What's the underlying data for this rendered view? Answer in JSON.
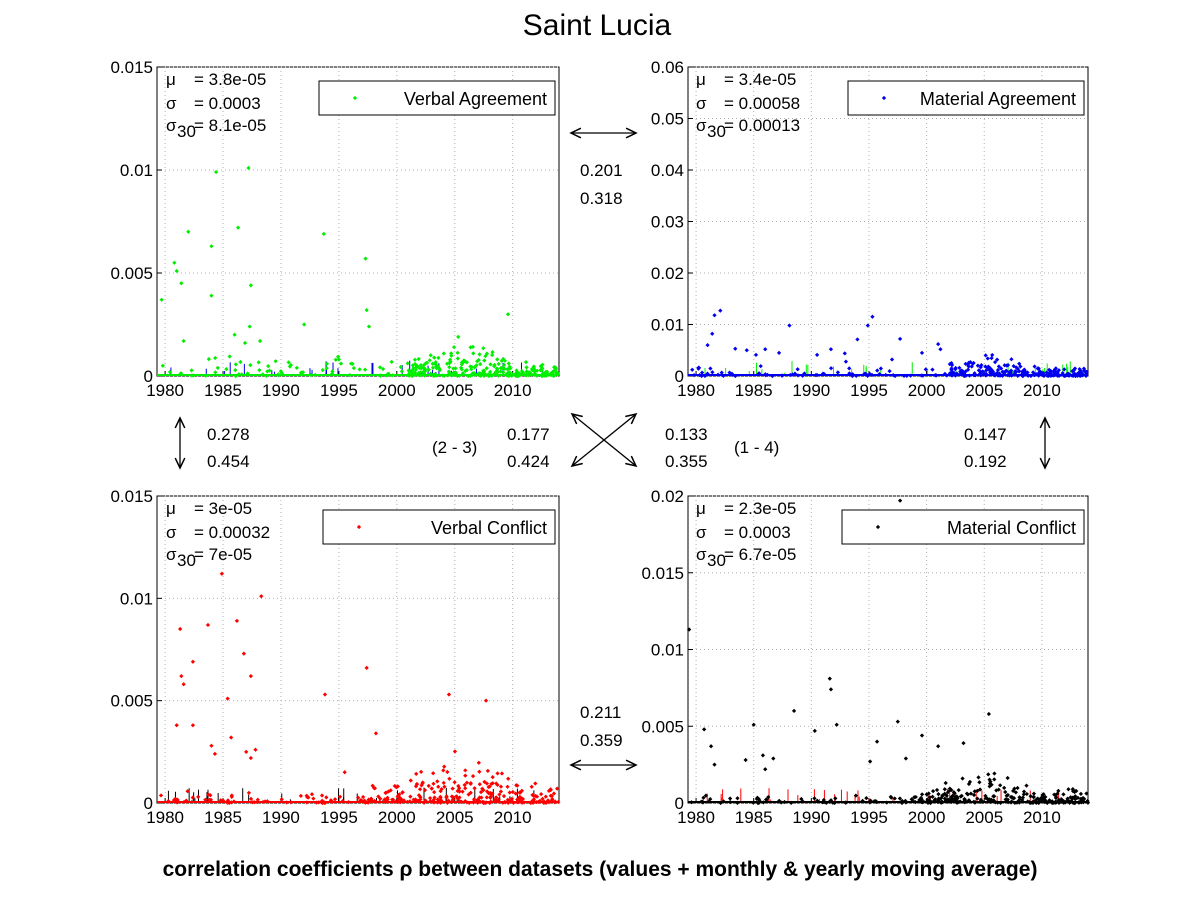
{
  "title": "Saint Lucia",
  "xlabel": "correlation coefficients ρ between datasets (values + monthly & yearly moving average)",
  "colors": {
    "verbal_agreement": "#00ee00",
    "material_agreement": "#0000ee",
    "verbal_conflict": "#ff0000",
    "material_conflict": "#000000",
    "grid": "#b0b0b0"
  },
  "correlations": {
    "top": {
      "v1": "0.201",
      "v2": "0.318"
    },
    "bottom": {
      "v1": "0.211",
      "v2": "0.359"
    },
    "left": {
      "v1": "0.278",
      "v2": "0.454"
    },
    "right": {
      "v1": "0.147",
      "v2": "0.192"
    },
    "diag_23": {
      "label": "(2 - 3)",
      "v1": "0.177",
      "v2": "0.424"
    },
    "diag_14": {
      "label": "(1 - 4)",
      "v1": "0.133",
      "v2": "0.355"
    }
  },
  "chart_data": [
    {
      "type": "scatter",
      "legend": "Verbal Agreement",
      "color": "#00ee00",
      "stats": {
        "mu_label": "μ",
        "mu": "= 3.8e-05",
        "sigma_label": "σ",
        "sigma": "= 0.0003",
        "sigma30_label": "σ",
        "sigma30_sub": "30",
        "sigma30": "= 8.1e-05"
      },
      "xlim": [
        1979.3,
        2014
      ],
      "ylim": [
        0,
        0.015
      ],
      "xticks": [
        1980,
        1985,
        1990,
        1995,
        2000,
        2005,
        2010
      ],
      "yticks": [
        0,
        0.005,
        0.01,
        0.015
      ],
      "ytick_labels": [
        "0",
        "0.005",
        "0.01",
        "0.015"
      ],
      "grid": true,
      "legend_position": "top-right",
      "peaks": [
        [
          1979.7,
          0.0037
        ],
        [
          1980.8,
          0.0055
        ],
        [
          1981.0,
          0.0051
        ],
        [
          1981.4,
          0.0045
        ],
        [
          1982.0,
          0.007
        ],
        [
          1981.6,
          0.0017
        ],
        [
          1984.0,
          0.0063
        ],
        [
          1984.4,
          0.0099
        ],
        [
          1984.0,
          0.0039
        ],
        [
          1986.3,
          0.0072
        ],
        [
          1986.0,
          0.002
        ],
        [
          1986.9,
          0.0016
        ],
        [
          1987.2,
          0.0101
        ],
        [
          1987.4,
          0.0044
        ],
        [
          1987.3,
          0.0024
        ],
        [
          1988.2,
          0.0017
        ],
        [
          1993.7,
          0.0069
        ],
        [
          1997.3,
          0.0057
        ],
        [
          1997.4,
          0.0032
        ],
        [
          1997.6,
          0.0024
        ],
        [
          2005.3,
          0.0019
        ],
        [
          2009.6,
          0.003
        ],
        [
          1992.0,
          0.0025
        ],
        [
          1995.0,
          0.0008
        ]
      ],
      "dense": {
        "x_start": 2001,
        "x_end": 2014,
        "y_center": 0.0006,
        "peak_x": 2005.5
      },
      "sparse_low": {
        "x_start": 1979.5,
        "x_end": 2001,
        "y_max": 0.0012
      },
      "other_series_color": "#0000ee"
    },
    {
      "type": "scatter",
      "legend": "Material Agreement",
      "color": "#0000ee",
      "stats": {
        "mu_label": "μ",
        "mu": "= 3.4e-05",
        "sigma_label": "σ",
        "sigma": "= 0.00058",
        "sigma30_label": "σ",
        "sigma30_sub": "30",
        "sigma30": "= 0.00013"
      },
      "xlim": [
        1979.3,
        2014
      ],
      "ylim": [
        0,
        0.06
      ],
      "xticks": [
        1980,
        1985,
        1990,
        1995,
        2000,
        2005,
        2010
      ],
      "yticks": [
        0,
        0.01,
        0.02,
        0.03,
        0.04,
        0.05,
        0.06
      ],
      "ytick_labels": [
        "0",
        "0.01",
        "0.02",
        "0.03",
        "0.04",
        "0.05",
        "0.06"
      ],
      "grid": true,
      "legend_position": "top-right",
      "peaks": [
        [
          1981.0,
          0.006
        ],
        [
          1981.4,
          0.0082
        ],
        [
          1981.6,
          0.0118
        ],
        [
          1982.1,
          0.0127
        ],
        [
          1983.4,
          0.0053
        ],
        [
          1984.4,
          0.005
        ],
        [
          1985.2,
          0.0041
        ],
        [
          1986.0,
          0.0052
        ],
        [
          1987.2,
          0.0045
        ],
        [
          1988.1,
          0.0098
        ],
        [
          1990.5,
          0.0041
        ],
        [
          1991.7,
          0.0052
        ],
        [
          1992.9,
          0.0044
        ],
        [
          1994.0,
          0.0071
        ],
        [
          1994.9,
          0.0098
        ],
        [
          1995.3,
          0.0115
        ],
        [
          1997.0,
          0.0032
        ],
        [
          1997.7,
          0.0072
        ],
        [
          1999.6,
          0.0045
        ],
        [
          2001.0,
          0.0062
        ],
        [
          2001.2,
          0.0052
        ],
        [
          1993.0,
          0.0028
        ]
      ],
      "dense": {
        "x_start": 2002,
        "x_end": 2014,
        "y_center": 0.0015,
        "peak_x": 2005.2
      },
      "sparse_low": {
        "x_start": 1979.5,
        "x_end": 2002,
        "y_max": 0.002
      },
      "other_series_color": "#00ee00"
    },
    {
      "type": "scatter",
      "legend": "Verbal Conflict",
      "color": "#ff0000",
      "stats": {
        "mu_label": "μ",
        "mu": "= 3e-05",
        "sigma_label": "σ",
        "sigma": "= 0.00032",
        "sigma30_label": "σ",
        "sigma30_sub": "30",
        "sigma30": "= 7e-05"
      },
      "xlim": [
        1979.3,
        2014
      ],
      "ylim": [
        0,
        0.015
      ],
      "xticks": [
        1980,
        1985,
        1990,
        1995,
        2000,
        2005,
        2010
      ],
      "yticks": [
        0,
        0.005,
        0.01,
        0.015
      ],
      "ytick_labels": [
        "0",
        "0.005",
        "0.01",
        "0.015"
      ],
      "grid": true,
      "legend_position": "top-right",
      "peaks": [
        [
          1981.3,
          0.0085
        ],
        [
          1982.4,
          0.0069
        ],
        [
          1981.4,
          0.0062
        ],
        [
          1981.6,
          0.0058
        ],
        [
          1981.0,
          0.0038
        ],
        [
          1982.4,
          0.0038
        ],
        [
          1983.7,
          0.0087
        ],
        [
          1984.9,
          0.0112
        ],
        [
          1985.4,
          0.0051
        ],
        [
          1986.2,
          0.0089
        ],
        [
          1986.8,
          0.0073
        ],
        [
          1987.4,
          0.0062
        ],
        [
          1988.3,
          0.0101
        ],
        [
          1984.0,
          0.0028
        ],
        [
          1984.3,
          0.0024
        ],
        [
          1985.7,
          0.0032
        ],
        [
          1987.0,
          0.0025
        ],
        [
          1987.4,
          0.0022
        ],
        [
          1987.8,
          0.0026
        ],
        [
          1993.8,
          0.0053
        ],
        [
          1997.4,
          0.0066
        ],
        [
          1998.2,
          0.0034
        ],
        [
          2004.5,
          0.0053
        ],
        [
          2007.7,
          0.005
        ],
        [
          1995.5,
          0.0015
        ]
      ],
      "dense": {
        "x_start": 1997.5,
        "x_end": 2014,
        "y_center": 0.0009,
        "peak_x": 2005.3
      },
      "sparse_low": {
        "x_start": 1979.5,
        "x_end": 1997.5,
        "y_max": 0.0006
      },
      "other_series_color": "#000000"
    },
    {
      "type": "scatter",
      "legend": "Material Conflict",
      "color": "#000000",
      "stats": {
        "mu_label": "μ",
        "mu": "= 2.3e-05",
        "sigma_label": "σ",
        "sigma": "= 0.0003",
        "sigma30_label": "σ",
        "sigma30_sub": "30",
        "sigma30": "= 6.7e-05"
      },
      "xlim": [
        1979.3,
        2014
      ],
      "ylim": [
        0,
        0.02
      ],
      "xticks": [
        1980,
        1985,
        1990,
        1995,
        2000,
        2005,
        2010
      ],
      "yticks": [
        0,
        0.005,
        0.01,
        0.015,
        0.02
      ],
      "ytick_labels": [
        "0",
        "0.005",
        "0.01",
        "0.015",
        "0.02"
      ],
      "grid": true,
      "legend_position": "top-right",
      "peaks": [
        [
          1979.4,
          0.0113
        ],
        [
          1980.7,
          0.0048
        ],
        [
          1981.3,
          0.0037
        ],
        [
          1981.6,
          0.0025
        ],
        [
          1984.3,
          0.0028
        ],
        [
          1985.0,
          0.0051
        ],
        [
          1985.8,
          0.0031
        ],
        [
          1986.0,
          0.0022
        ],
        [
          1986.7,
          0.0029
        ],
        [
          1988.5,
          0.006
        ],
        [
          1990.3,
          0.0047
        ],
        [
          1991.6,
          0.0081
        ],
        [
          1991.7,
          0.0074
        ],
        [
          1992.2,
          0.0051
        ],
        [
          1995.1,
          0.0027
        ],
        [
          1995.7,
          0.004
        ],
        [
          1997.5,
          0.0053
        ],
        [
          1998.2,
          0.0029
        ],
        [
          1999.6,
          0.0044
        ],
        [
          2001.0,
          0.0037
        ],
        [
          2003.2,
          0.0039
        ],
        [
          2005.4,
          0.0058
        ],
        [
          1997.7,
          0.0197
        ]
      ],
      "dense": {
        "x_start": 1999.5,
        "x_end": 2014,
        "y_center": 0.0008,
        "peak_x": 2005.0
      },
      "sparse_low": {
        "x_start": 1979.5,
        "x_end": 1999.5,
        "y_max": 0.0006
      },
      "other_series_color": "#ff0000"
    }
  ]
}
